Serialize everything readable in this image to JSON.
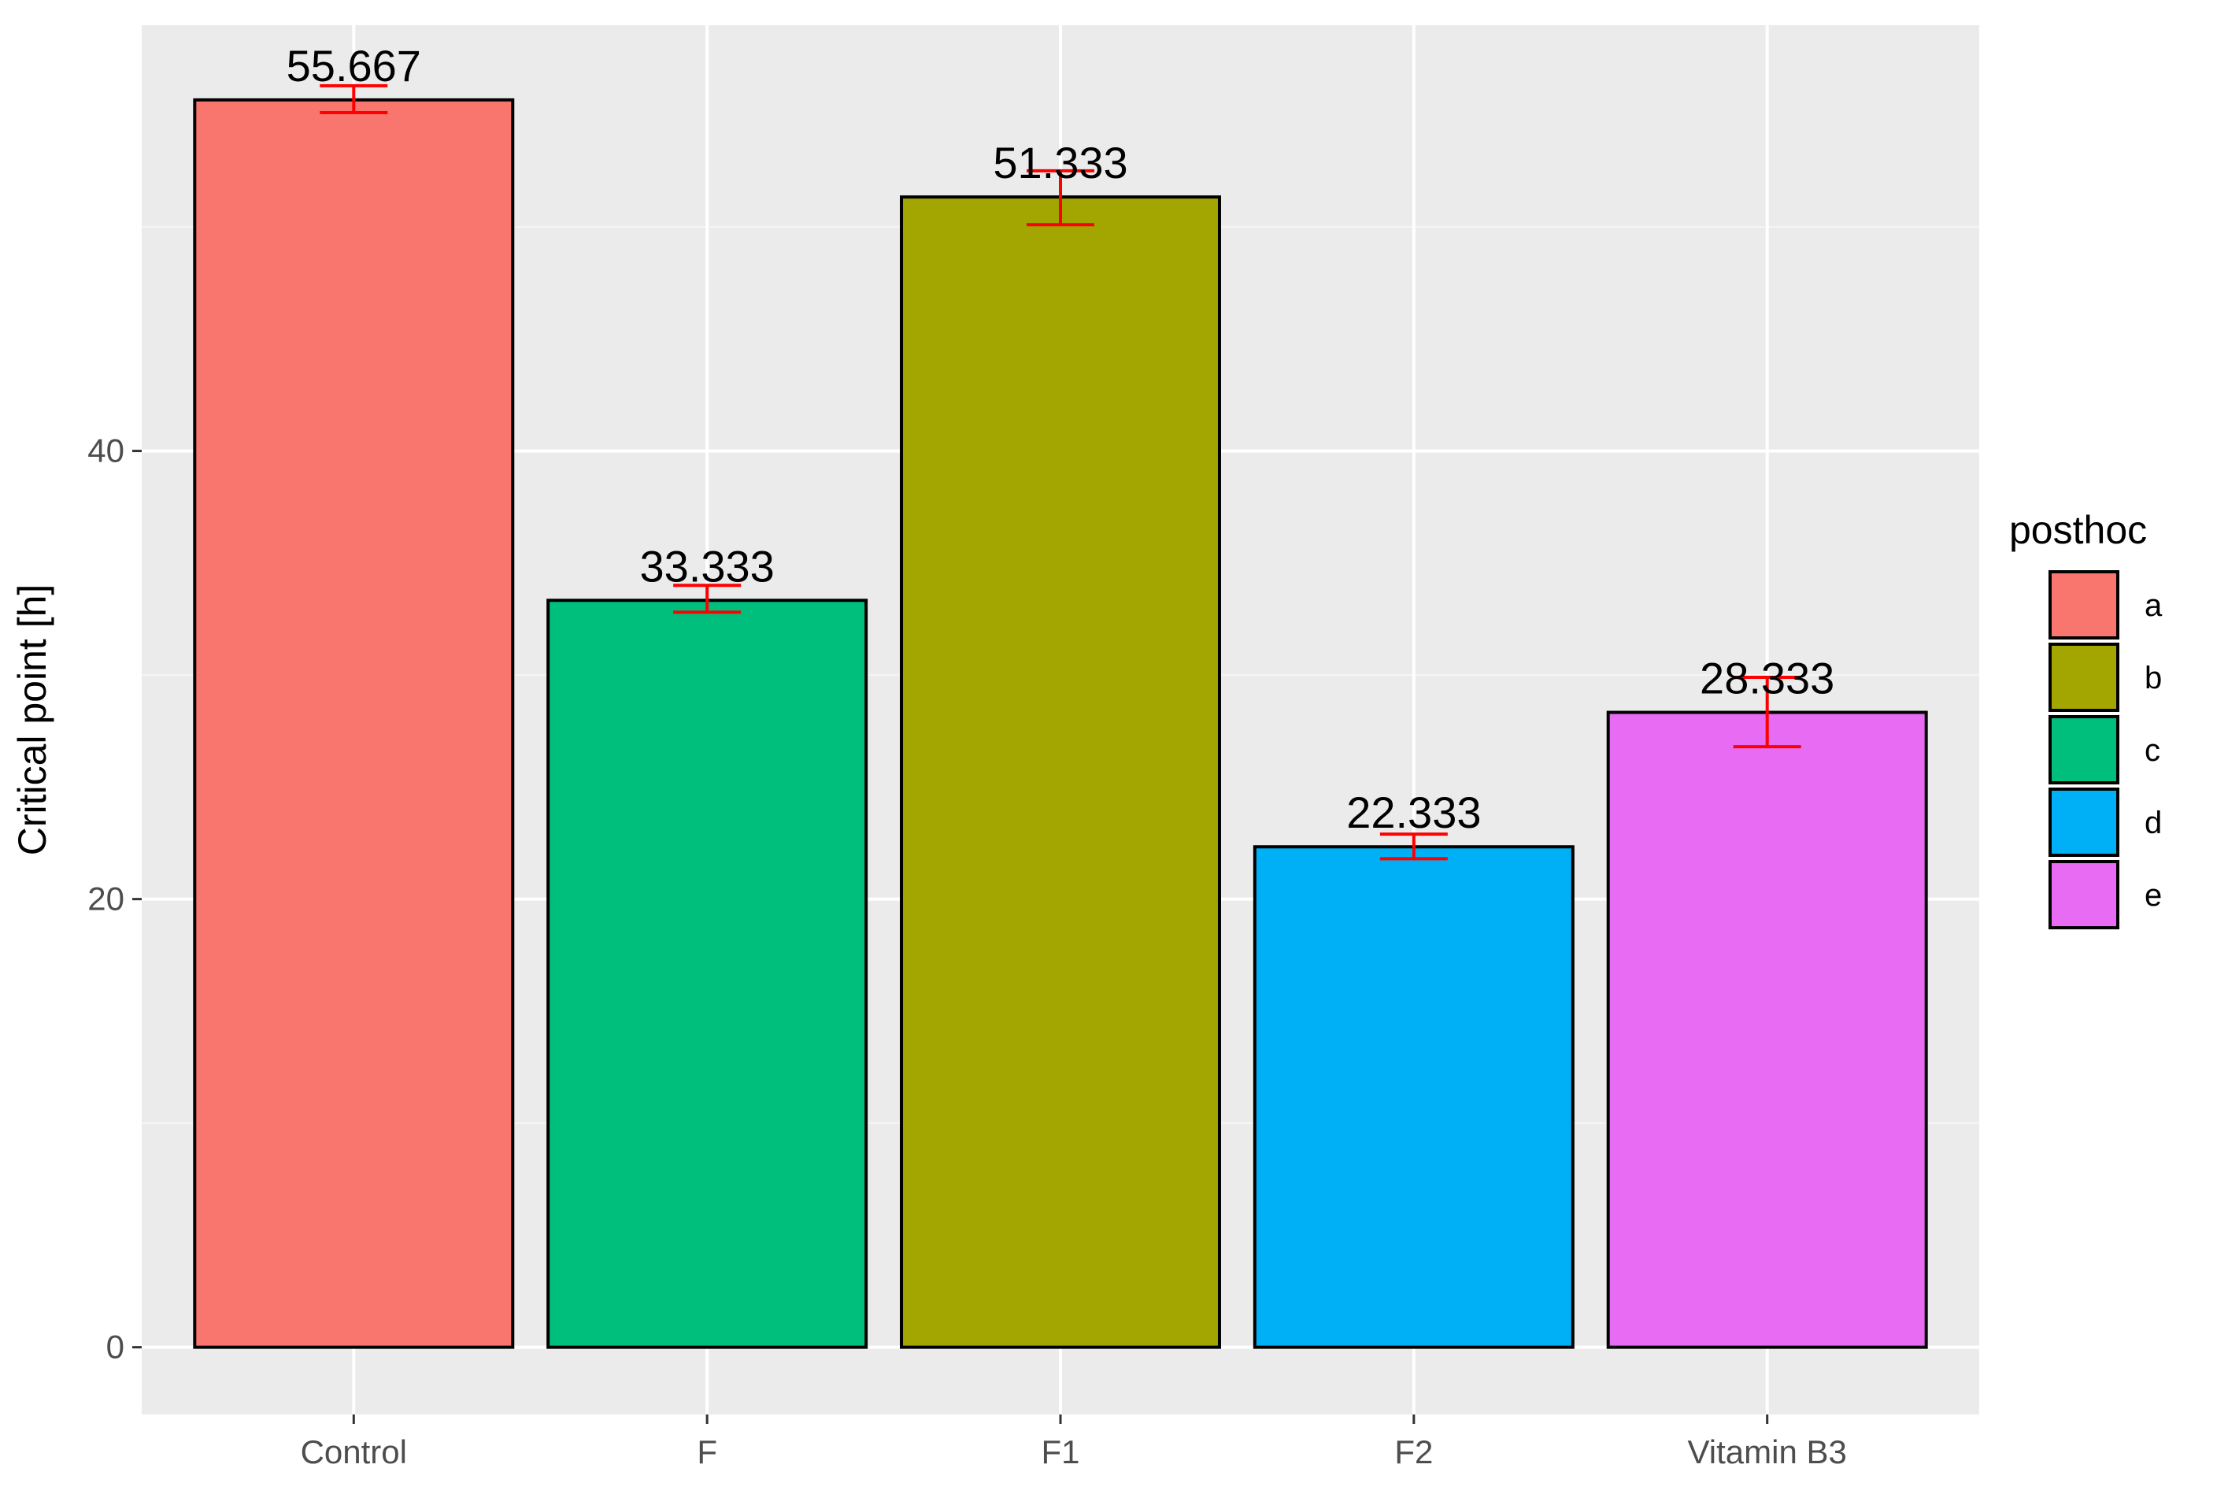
{
  "chart_data": {
    "type": "bar",
    "categories": [
      "Control",
      "F",
      "F1",
      "F2",
      "Vitamin B3"
    ],
    "values": [
      55.667,
      33.333,
      51.333,
      22.333,
      28.333
    ],
    "value_labels": [
      "55.667",
      "33.333",
      "51.333",
      "22.333",
      "28.333"
    ],
    "error_bars": [
      {
        "low": 55.1,
        "high": 56.3
      },
      {
        "low": 32.8,
        "high": 34.0
      },
      {
        "low": 50.1,
        "high": 52.5
      },
      {
        "low": 21.8,
        "high": 22.9
      },
      {
        "low": 26.8,
        "high": 29.9
      }
    ],
    "groups": [
      "a",
      "c",
      "b",
      "d",
      "e"
    ],
    "xlabel": "",
    "ylabel": "Critical point [h]",
    "ylim": [
      -3,
      59
    ],
    "yticks": [
      0,
      20,
      40
    ],
    "ytick_labels": [
      "0",
      "20",
      "40"
    ],
    "grid": true,
    "legend": {
      "title": "posthoc",
      "position": "right",
      "entries": [
        {
          "label": "a",
          "color": "#F8766D"
        },
        {
          "label": "b",
          "color": "#A3A500"
        },
        {
          "label": "c",
          "color": "#00BF7D"
        },
        {
          "label": "d",
          "color": "#00B0F6"
        },
        {
          "label": "e",
          "color": "#E76BF3"
        }
      ]
    },
    "colors": {
      "panel_background": "#EBEBEB",
      "grid_major": "#FFFFFF",
      "grid_minor": "#F5F5F5",
      "bar_outline": "#000000",
      "error_bar": "#FF0000",
      "group_a": "#F8766D",
      "group_b": "#A3A500",
      "group_c": "#00BF7D",
      "group_d": "#00B0F6",
      "group_e": "#E76BF3"
    }
  }
}
